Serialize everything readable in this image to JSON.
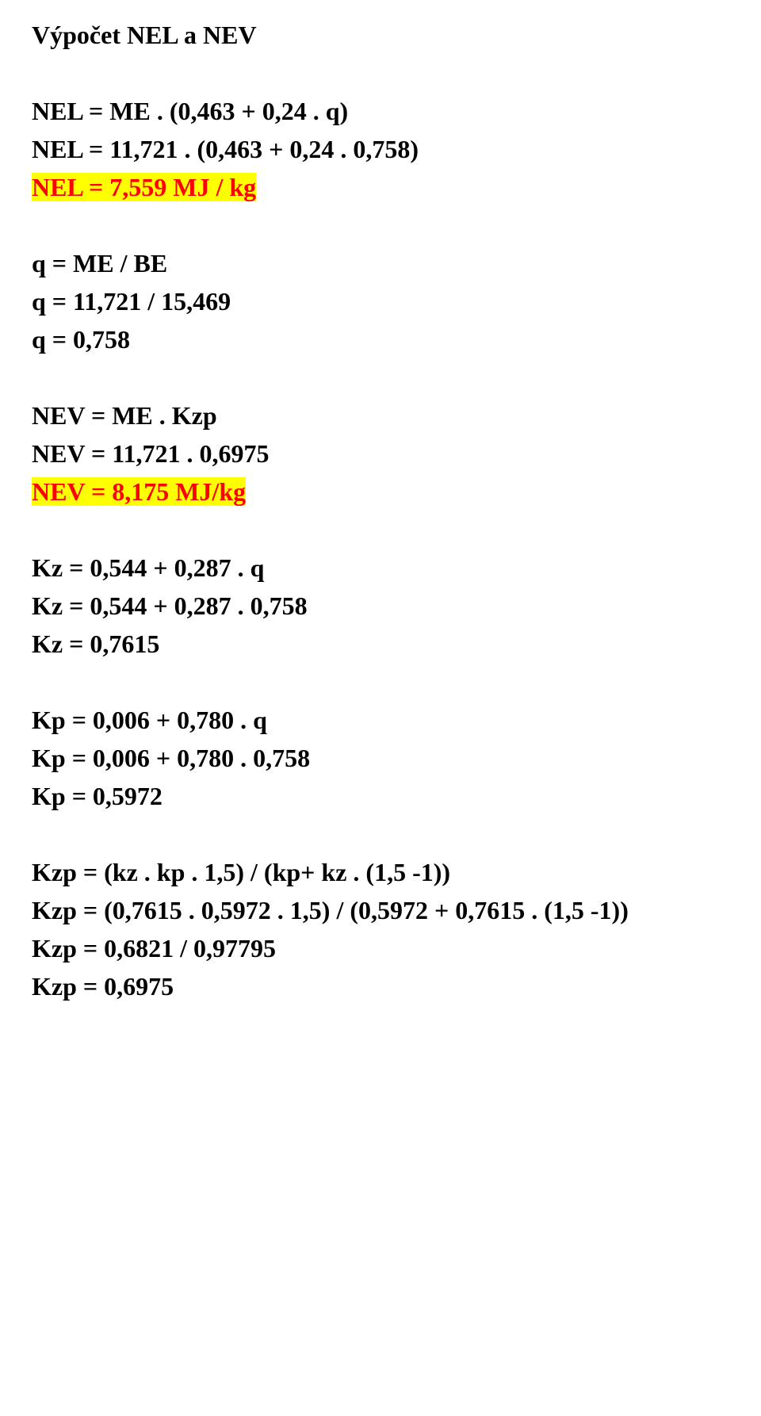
{
  "title": "Výpočet NEL a NEV",
  "sections": {
    "nel": {
      "l1": "NEL = ME . (0,463 + 0,24 . q)",
      "l2": "NEL = 11,721 . (0,463 + 0,24 . 0,758)",
      "l3": "NEL = 7,559 MJ / kg"
    },
    "q": {
      "l1": "q = ME / BE",
      "l2": "q = 11,721 / 15,469",
      "l3": "q = 0,758"
    },
    "nev": {
      "l1": "NEV = ME . Kzp",
      "l2": "NEV = 11,721 . 0,6975",
      "l3": "NEV = 8,175 MJ/kg"
    },
    "kz": {
      "l1": "Kz = 0,544 + 0,287 .  q",
      "l2": "Kz = 0,544 + 0,287 . 0,758",
      "l3": "Kz = 0,7615"
    },
    "kp": {
      "l1": "Kp = 0,006 + 0,780 .  q",
      "l2": "Kp = 0,006 + 0,780 . 0,758",
      "l3": "Kp = 0,5972"
    },
    "kzp": {
      "l1": "Kzp = (kz . kp . 1,5) / (kp+ kz . (1,5 -1))",
      "l2": "Kzp = (0,7615 . 0,5972 . 1,5) / (0,5972 + 0,7615 . (1,5 -1))",
      "l3": "Kzp = 0,6821 / 0,97795",
      "l4": "Kzp = 0,6975"
    }
  }
}
